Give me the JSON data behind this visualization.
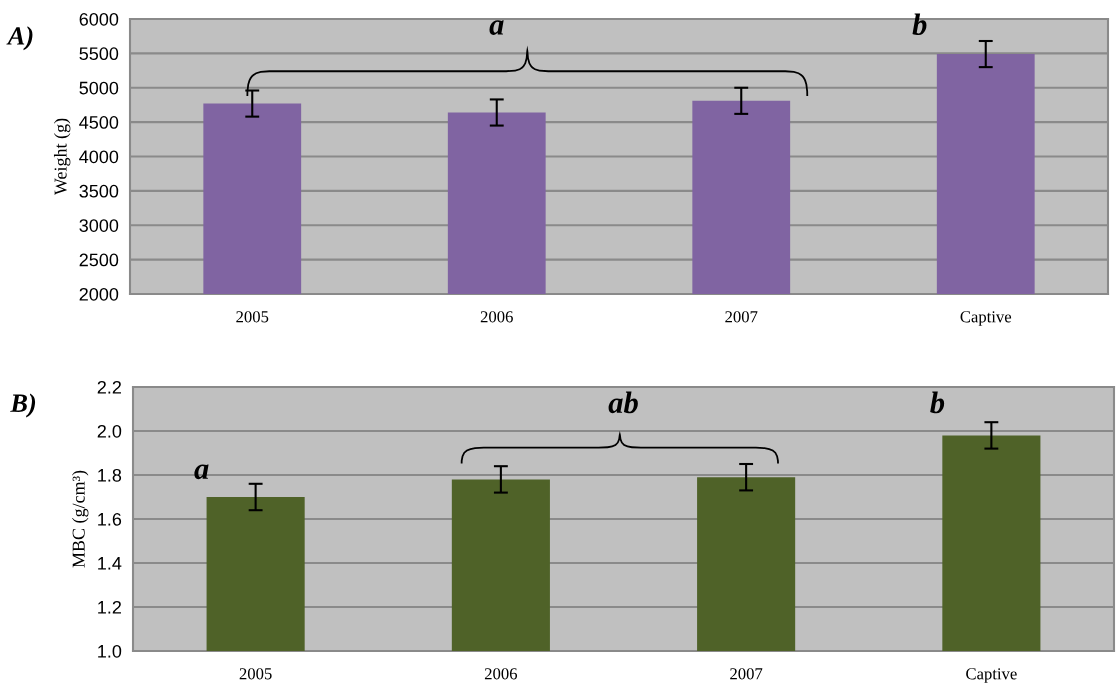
{
  "chart_data": [
    {
      "type": "bar",
      "title": "A)",
      "ylabel": "Weight (g)",
      "categories": [
        "2005",
        "2006",
        "2007",
        "Captive"
      ],
      "values": [
        4770,
        4640,
        4810,
        5490
      ],
      "errors": [
        190,
        190,
        190,
        190
      ],
      "color": "#8064a2",
      "ylim": [
        2000,
        6000
      ],
      "yticks": [
        2000,
        2500,
        3000,
        3500,
        4000,
        4500,
        5000,
        5500,
        6000
      ],
      "grid": "y",
      "annotations": [
        "a",
        "b"
      ]
    },
    {
      "type": "bar",
      "title": "B)",
      "ylabel": "MBC (g/cm³)",
      "categories": [
        "2005",
        "2006",
        "2007",
        "Captive"
      ],
      "values": [
        1.7,
        1.78,
        1.79,
        1.98
      ],
      "errors": [
        0.06,
        0.06,
        0.06,
        0.06
      ],
      "color": "#4f6228",
      "ylim": [
        1.0,
        2.2
      ],
      "yticks": [
        {
          "value": 1.0,
          "label": "1.0"
        },
        {
          "value": 1.2,
          "label": "1.2"
        },
        {
          "value": 1.4,
          "label": "1.4"
        },
        {
          "value": 1.6,
          "label": "1.6"
        },
        {
          "value": 1.8,
          "label": "1.8"
        },
        {
          "value": 2.0,
          "label": "2.0"
        },
        {
          "value": 2.2,
          "label": "2.2"
        }
      ],
      "grid": "y",
      "annotations": [
        "a",
        "ab",
        "b"
      ]
    }
  ]
}
